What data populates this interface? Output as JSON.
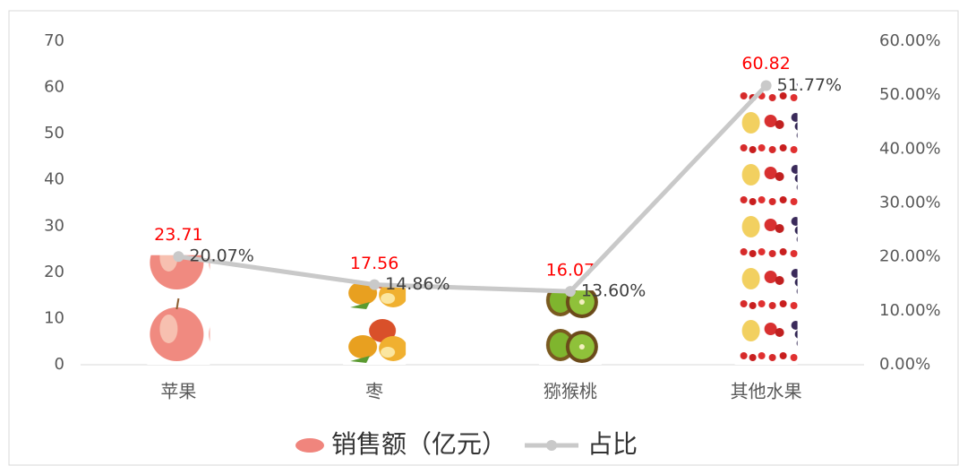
{
  "chart_data": {
    "type": "combo",
    "categories": [
      "苹果",
      "枣",
      "猕猴桃",
      "其他水果"
    ],
    "series": [
      {
        "name": "销售额（亿元）",
        "type": "bar",
        "color": "#f0857d",
        "label_color": "#ff0000",
        "values": [
          23.71,
          17.56,
          16.07,
          60.82
        ]
      },
      {
        "name": "占比",
        "type": "line",
        "axis": "y2",
        "color": "#c9c9c9",
        "values": [
          20.07,
          14.86,
          13.6,
          51.77
        ],
        "value_labels": [
          "20.07%",
          "14.86%",
          "13.60%",
          "51.77%"
        ]
      }
    ],
    "ylim": [
      0,
      70
    ],
    "yticks": [
      0,
      10,
      20,
      30,
      40,
      50,
      60,
      70
    ],
    "y2lim": [
      0,
      60
    ],
    "y2ticks": [
      {
        "value": 0,
        "label": "0.00%"
      },
      {
        "value": 10,
        "label": "10.00%"
      },
      {
        "value": 20,
        "label": "20.00%"
      },
      {
        "value": 30,
        "label": "30.00%"
      },
      {
        "value": 40,
        "label": "40.00%"
      },
      {
        "value": 50,
        "label": "50.00%"
      },
      {
        "value": 60,
        "label": "60.00%"
      }
    ],
    "legend": "bottom"
  }
}
